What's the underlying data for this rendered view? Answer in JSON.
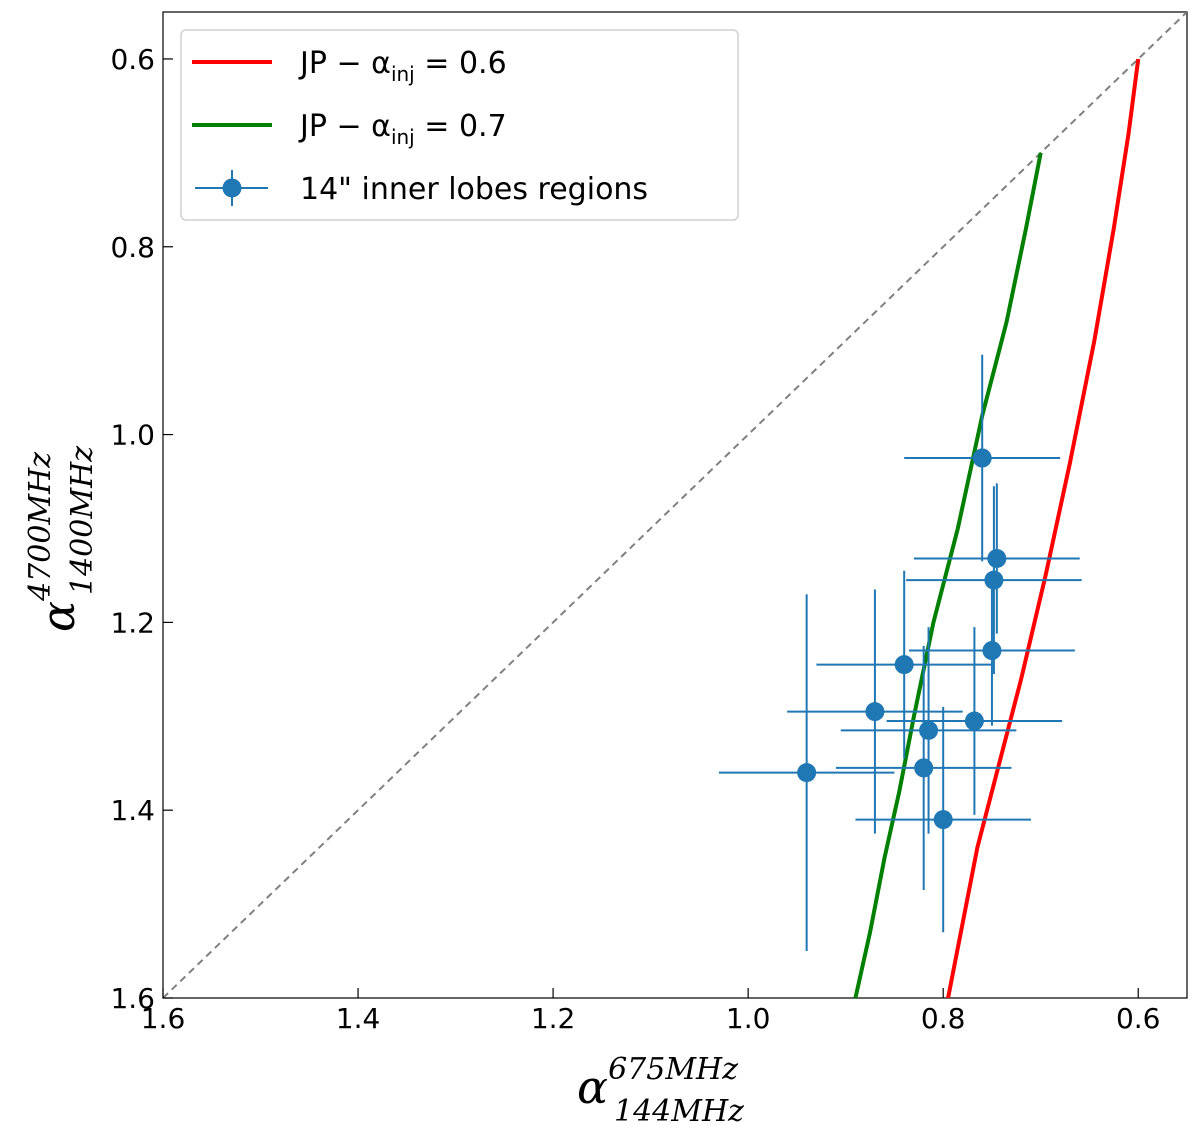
{
  "chart_data": {
    "type": "scatter",
    "title": "",
    "x_axis": {
      "label_main": "α",
      "label_sup": "675MHz",
      "label_sub": "144MHz",
      "range": [
        1.6,
        0.55
      ],
      "inverted": true,
      "ticks": [
        1.6,
        1.4,
        1.2,
        1.0,
        0.8,
        0.6
      ],
      "tick_labels": [
        "1.6",
        "1.4",
        "1.2",
        "1.0",
        "0.8",
        "0.6"
      ]
    },
    "y_axis": {
      "label_main": "α",
      "label_sup": "4700MHz",
      "label_sub": "1400MHz",
      "range": [
        1.6,
        0.55
      ],
      "inverted": true,
      "ticks": [
        1.6,
        1.4,
        1.2,
        1.0,
        0.8,
        0.6
      ],
      "tick_labels": [
        "1.6",
        "1.4",
        "1.2",
        "1.0",
        "0.8",
        "0.6"
      ]
    },
    "grid": false,
    "legend": {
      "placement": "top-left",
      "entries": [
        {
          "text": "JP − α",
          "sub": "inj",
          "suffix": " = 0.6",
          "color": "#ff0000",
          "kind": "line"
        },
        {
          "text": "JP − α",
          "sub": "inj",
          "suffix": " = 0.7",
          "color": "#008000",
          "kind": "line"
        },
        {
          "text": "14\" inner lobes regions",
          "sub": "",
          "suffix": "",
          "color": "#1f77b4",
          "kind": "errorbar"
        }
      ]
    },
    "reference_line": {
      "style": "dashed",
      "color": "#808080",
      "points": [
        [
          1.6,
          1.6
        ],
        [
          0.55,
          0.55
        ]
      ]
    },
    "series": [
      {
        "name": "JP − α_inj = 0.6",
        "type": "line",
        "color": "#ff0000",
        "x": [
          0.6,
          0.61,
          0.625,
          0.645,
          0.67,
          0.695,
          0.72,
          0.745,
          0.765,
          0.78,
          0.795
        ],
        "y": [
          0.6,
          0.68,
          0.78,
          0.9,
          1.03,
          1.15,
          1.26,
          1.36,
          1.44,
          1.52,
          1.6
        ]
      },
      {
        "name": "JP − α_inj = 0.7",
        "type": "line",
        "color": "#008000",
        "x": [
          0.7,
          0.715,
          0.735,
          0.76,
          0.785,
          0.81,
          0.83,
          0.845,
          0.86,
          0.875,
          0.89
        ],
        "y": [
          0.7,
          0.78,
          0.88,
          0.98,
          1.1,
          1.2,
          1.3,
          1.38,
          1.45,
          1.53,
          1.6
        ]
      },
      {
        "name": "14\" inner lobes regions",
        "type": "errorbar",
        "color": "#1f77b4",
        "points": [
          {
            "x": 0.76,
            "y": 1.025,
            "xerr": 0.08,
            "yerr": 0.11
          },
          {
            "x": 0.745,
            "y": 1.132,
            "xerr": 0.085,
            "yerr": 0.08
          },
          {
            "x": 0.748,
            "y": 1.155,
            "xerr": 0.09,
            "yerr": 0.1
          },
          {
            "x": 0.75,
            "y": 1.23,
            "xerr": 0.085,
            "yerr": 0.08
          },
          {
            "x": 0.84,
            "y": 1.245,
            "xerr": 0.09,
            "yerr": 0.1
          },
          {
            "x": 0.768,
            "y": 1.305,
            "xerr": 0.09,
            "yerr": 0.1
          },
          {
            "x": 0.87,
            "y": 1.295,
            "xerr": 0.09,
            "yerr": 0.13
          },
          {
            "x": 0.815,
            "y": 1.315,
            "xerr": 0.09,
            "yerr": 0.11
          },
          {
            "x": 0.82,
            "y": 1.355,
            "xerr": 0.09,
            "yerr": 0.13
          },
          {
            "x": 0.94,
            "y": 1.36,
            "xerr": 0.09,
            "yerr": 0.19
          },
          {
            "x": 0.8,
            "y": 1.41,
            "xerr": 0.09,
            "yerr": 0.12
          }
        ]
      }
    ]
  }
}
